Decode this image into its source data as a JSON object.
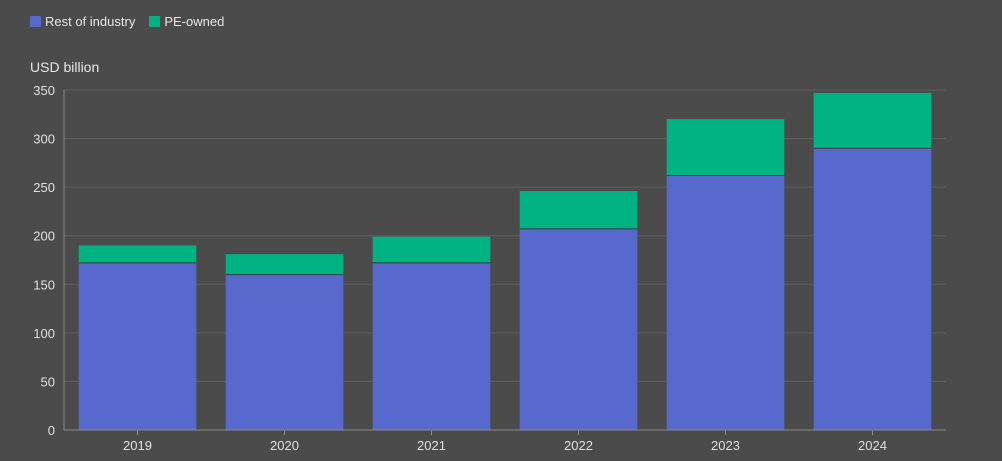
{
  "legend": {
    "items": [
      {
        "label": "Rest of industry",
        "color": "#5769cc"
      },
      {
        "label": "PE-owned",
        "color": "#00b383"
      }
    ]
  },
  "colors": {
    "background": "#4b4b4b",
    "grid": "#5e5e5e",
    "axis": "#8a8a8a",
    "segment_divider": "#3a3a3a"
  },
  "chart_data": {
    "type": "bar",
    "stacked": true,
    "ylabel": "USD billion",
    "xlabel": "",
    "categories": [
      "2019",
      "2020",
      "2021",
      "2022",
      "2023",
      "2024"
    ],
    "series": [
      {
        "name": "Rest of industry",
        "values": [
          172,
          160,
          172,
          207,
          262,
          290
        ]
      },
      {
        "name": "PE-owned",
        "values": [
          18,
          21,
          27,
          39,
          58,
          57
        ]
      }
    ],
    "ylim": [
      0,
      350
    ],
    "yticks": [
      0,
      50,
      100,
      150,
      200,
      250,
      300,
      350
    ],
    "grid": true,
    "legend_position": "top-left"
  }
}
